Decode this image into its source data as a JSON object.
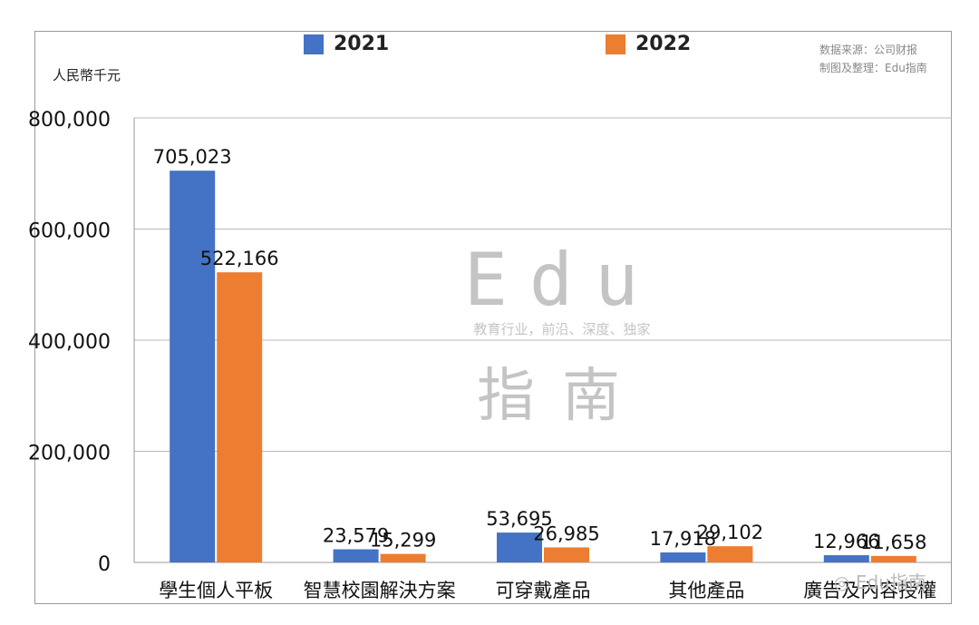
{
  "source": {
    "line1": "数据来源：公司财报",
    "line2": "制图及整理：Edu指南"
  },
  "unit_label": "人民幣千元",
  "watermark": {
    "big": "Edu",
    "tagline": "教育行业，前沿、深度、独家",
    "chinese": "指南"
  },
  "social_mark": "Edu指南",
  "chart_data": {
    "type": "bar",
    "title": "",
    "xlabel": "",
    "ylabel": "人民幣千元",
    "ylim": [
      0,
      800000
    ],
    "yticks": [
      0,
      200000,
      400000,
      600000,
      800000
    ],
    "ytick_labels": [
      "0",
      "200,000",
      "400,000",
      "600,000",
      "800,000"
    ],
    "grid": true,
    "legend_position": "top",
    "categories": [
      "學生個人平板",
      "智慧校園解決方案",
      "可穿戴產品",
      "其他產品",
      "廣告及內容授權"
    ],
    "series": [
      {
        "name": "2021",
        "color": "#4472c4",
        "values": [
          705023,
          23579,
          53695,
          17918,
          12966
        ],
        "labels": [
          "705,023",
          "23,579",
          "53,695",
          "17,918",
          "12,966"
        ]
      },
      {
        "name": "2022",
        "color": "#ed7d31",
        "values": [
          522166,
          15299,
          26985,
          29102,
          11658
        ],
        "labels": [
          "522,166",
          "15,299",
          "26,985",
          "29,102",
          "11,658"
        ]
      }
    ]
  }
}
